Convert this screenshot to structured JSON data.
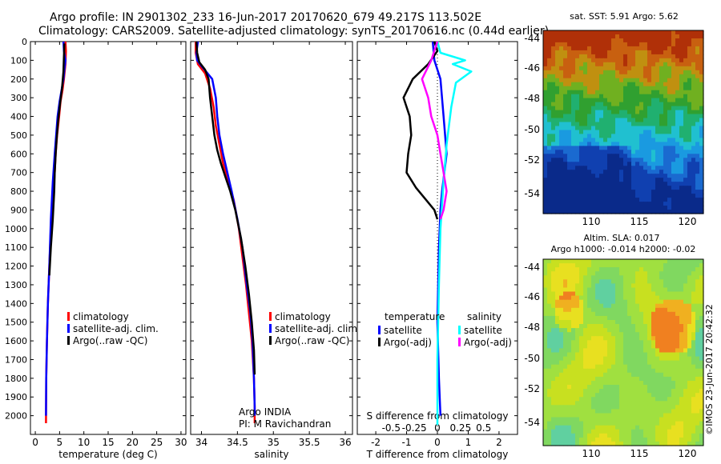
{
  "header": {
    "line1": "Argo profile: IN 2901302_233 16-Jun-2017 20170620_679 49.217S 113.502E",
    "line2": "Climatology: CARS2009. Satellite-adjusted climatology: synTS_20170616.nc (0.44d earlier)"
  },
  "colors": {
    "clim": "#ff0000",
    "sat": "#0000ff",
    "argo": "#000000",
    "sat_salinity": "#00ffff",
    "argo_adj_salinity": "#ff00ff",
    "frame": "#000000"
  },
  "chart_data": [
    {
      "id": "temperature",
      "type": "line",
      "xlabel": "temperature (deg C)",
      "ylabel": "",
      "xlim": [
        -1,
        31
      ],
      "ylim": [
        2100,
        0
      ],
      "xticks": [
        "0",
        "5",
        "10",
        "15",
        "20",
        "25",
        "30"
      ],
      "yticks": [
        "0",
        "100",
        "200",
        "300",
        "400",
        "500",
        "600",
        "700",
        "800",
        "900",
        "1000",
        "1100",
        "1200",
        "1300",
        "1400",
        "1500",
        "1600",
        "1700",
        "1800",
        "1900",
        "2000"
      ],
      "legend": [
        "climatology",
        "satellite-adj. clim.",
        "Argo(..raw -QC)"
      ],
      "series": [
        {
          "name": "climatology",
          "color": "#ff0000",
          "x": [
            6.2,
            6.3,
            6.2,
            5.9,
            5.6,
            5.2,
            4.9,
            4.5,
            4.2,
            4.0,
            3.6,
            3.2,
            2.9,
            2.6,
            2.4,
            2.25,
            2.2
          ],
          "y": [
            0,
            50,
            120,
            200,
            260,
            320,
            400,
            500,
            600,
            700,
            850,
            1000,
            1200,
            1400,
            1600,
            1800,
            2040
          ]
        },
        {
          "name": "satellite-adj. clim.",
          "color": "#0000ff",
          "x": [
            5.8,
            5.9,
            6.2,
            6.0,
            5.8,
            5.4,
            5.0,
            4.6,
            4.3,
            4.0,
            3.6,
            3.2,
            2.9,
            2.6,
            2.4,
            2.25,
            2.2
          ],
          "y": [
            0,
            50,
            100,
            150,
            200,
            260,
            320,
            400,
            500,
            600,
            750,
            950,
            1200,
            1400,
            1600,
            1800,
            2000
          ]
        },
        {
          "name": "Argo(..raw -QC)",
          "color": "#000000",
          "x": [
            6.0,
            5.9,
            5.8,
            5.5,
            5.1,
            4.7,
            4.4,
            4.2,
            4.0,
            3.9,
            3.6,
            3.2,
            2.9
          ],
          "y": [
            10,
            80,
            160,
            250,
            330,
            420,
            520,
            600,
            700,
            800,
            950,
            1100,
            1250
          ]
        }
      ]
    },
    {
      "id": "salinity",
      "type": "line",
      "xlabel": "salinity",
      "ylabel": "",
      "xlim": [
        33.85,
        36.1
      ],
      "ylim": [
        2100,
        0
      ],
      "xticks": [
        "34",
        "34.5",
        "35",
        "35.5",
        "36"
      ],
      "legend": [
        "climatology",
        "satellite-adj. clim.",
        "Argo(..raw -QC)"
      ],
      "annotation": [
        "Argo INDIA",
        "PI: M Ravichandran"
      ],
      "series": [
        {
          "name": "climatology",
          "color": "#ff0000",
          "x": [
            33.92,
            33.92,
            33.95,
            34.05,
            34.12,
            34.17,
            34.2,
            34.25,
            34.3,
            34.38,
            34.45,
            34.52,
            34.57,
            34.62,
            34.66,
            34.7,
            34.73,
            34.74,
            34.74
          ],
          "y": [
            0,
            60,
            120,
            170,
            250,
            350,
            450,
            550,
            650,
            750,
            850,
            1000,
            1150,
            1300,
            1450,
            1600,
            1800,
            1950,
            2040
          ]
        },
        {
          "name": "satellite-adj. clim.",
          "color": "#0000ff",
          "x": [
            33.95,
            33.93,
            33.94,
            34.0,
            34.15,
            34.2,
            34.22,
            34.25,
            34.3,
            34.36,
            34.42,
            34.5,
            34.57,
            34.63,
            34.68,
            34.71,
            34.73,
            34.74,
            34.74
          ],
          "y": [
            0,
            60,
            100,
            130,
            200,
            300,
            400,
            500,
            600,
            700,
            800,
            950,
            1100,
            1300,
            1450,
            1600,
            1800,
            1950,
            2000
          ]
        },
        {
          "name": "Argo(..raw -QC)",
          "color": "#000000",
          "x": [
            33.93,
            33.94,
            33.97,
            34.05,
            34.1,
            34.12,
            34.15,
            34.18,
            34.22,
            34.27,
            34.33,
            34.4,
            34.47,
            34.55,
            34.61,
            34.66,
            34.7,
            34.73,
            34.74
          ],
          "y": [
            0,
            60,
            110,
            150,
            200,
            300,
            400,
            500,
            580,
            650,
            720,
            800,
            900,
            1050,
            1200,
            1350,
            1500,
            1650,
            1780
          ]
        }
      ]
    },
    {
      "id": "difference",
      "type": "line",
      "xlabel": "T difference from climatology",
      "xlabel2": "S difference from climatology",
      "xlim": [
        -2.6,
        2.6
      ],
      "ylim": [
        2100,
        0
      ],
      "xticks": [
        "-2",
        "-1",
        "0",
        "1",
        "2"
      ],
      "xticks2": [
        "-0.5",
        "-0.25",
        "0",
        "0.25",
        "0.5"
      ],
      "legend_titles": [
        "temperature",
        "salinity"
      ],
      "legend": [
        "satellite",
        "Argo(-adj)",
        "satellite",
        "Argo(-adj)"
      ],
      "series": [
        {
          "name": "satellite",
          "color": "#0000ff",
          "x": [
            -0.15,
            -0.1,
            0.1,
            0.2,
            0.3,
            0.15,
            0.1,
            0.05,
            0.0,
            0.05,
            0.1
          ],
          "y": [
            0,
            100,
            200,
            400,
            600,
            800,
            900,
            1100,
            1500,
            1800,
            2000
          ]
        },
        {
          "name": "Argo(-adj)",
          "color": "#000000",
          "x": [
            -0.1,
            0.0,
            -0.3,
            -0.8,
            -1.1,
            -0.9,
            -0.85,
            -0.95,
            -1.0,
            -0.7,
            -0.3,
            -0.1,
            0.0
          ],
          "y": [
            0,
            50,
            120,
            200,
            300,
            400,
            500,
            600,
            700,
            780,
            860,
            900,
            950
          ]
        },
        {
          "name": "satellite",
          "color": "#00ffff",
          "x": [
            0.0,
            0.1,
            0.9,
            0.5,
            1.1,
            0.6,
            0.45,
            0.3,
            0.2,
            0.1,
            0.05,
            0.0,
            0.0
          ],
          "y": [
            0,
            60,
            100,
            120,
            160,
            220,
            350,
            550,
            750,
            1000,
            1300,
            1700,
            2050
          ]
        },
        {
          "name": "Argo(-adj)",
          "color": "#ff00ff",
          "x": [
            0.0,
            -0.2,
            -0.5,
            -0.3,
            -0.2,
            0.0,
            0.1,
            0.2,
            0.3,
            0.2,
            0.1
          ],
          "y": [
            0,
            100,
            200,
            300,
            400,
            500,
            600,
            700,
            800,
            900,
            950
          ]
        }
      ]
    },
    {
      "id": "sst-map",
      "type": "heatmap",
      "title": "sat. SST: 5.91  Argo: 5.62",
      "xticks": [
        "110",
        "115",
        "120"
      ],
      "yticks": [
        "-44",
        "-46",
        "-48",
        "-50",
        "-52",
        "-54"
      ]
    },
    {
      "id": "sla-map",
      "type": "heatmap",
      "title": "Altim. SLA: 0.017",
      "subtitle": "Argo h1000: -0.014  h2000: -0.02",
      "xticks": [
        "110",
        "115",
        "120"
      ],
      "yticks": [
        "-44",
        "-46",
        "-48",
        "-50",
        "-52",
        "-54"
      ],
      "side_label": "©IMOS 23-Jun-2017 20:42:32"
    }
  ]
}
